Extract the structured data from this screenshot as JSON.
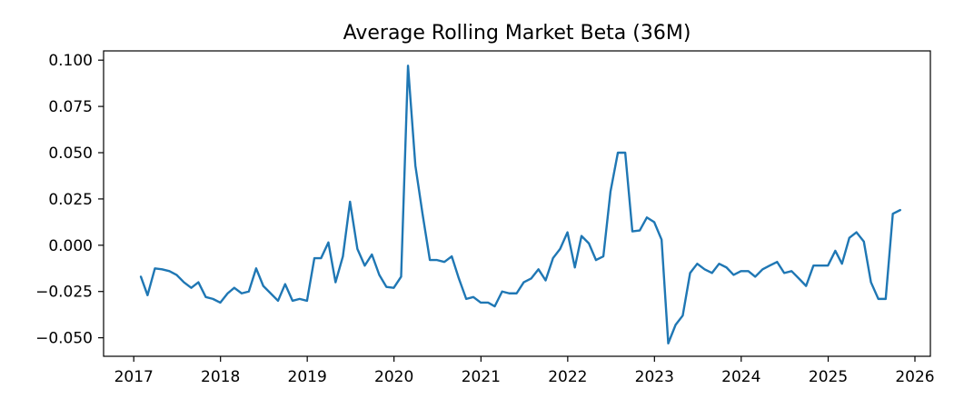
{
  "chart_data": {
    "type": "line",
    "title": "Average Rolling Market Beta (36M)",
    "xlabel": "",
    "ylabel": "",
    "xlim": [
      "2016-08-27",
      "2026-03-07"
    ],
    "ylim": [
      -0.06,
      0.105
    ],
    "x_ticks": [
      "2017",
      "2018",
      "2019",
      "2020",
      "2021",
      "2022",
      "2023",
      "2024",
      "2025",
      "2026"
    ],
    "y_ticks": [
      "0.100",
      "0.075",
      "0.050",
      "0.025",
      "0.000",
      "−0.025",
      "−0.050"
    ],
    "grid": false,
    "colors": {
      "line": "#1f77b4"
    },
    "series": [
      {
        "x": [
          "2017-01-31",
          "2017-02-28",
          "2017-03-31",
          "2017-04-30",
          "2017-05-31",
          "2017-06-30",
          "2017-07-31",
          "2017-08-31",
          "2017-09-30",
          "2017-10-31",
          "2017-11-30",
          "2017-12-31",
          "2018-01-31",
          "2018-02-28",
          "2018-03-31",
          "2018-04-30",
          "2018-05-31",
          "2018-06-30",
          "2018-07-31",
          "2018-08-31",
          "2018-09-30",
          "2018-10-31",
          "2018-11-30",
          "2018-12-31",
          "2019-01-31",
          "2019-02-28",
          "2019-03-31",
          "2019-04-30",
          "2019-05-31",
          "2019-06-30",
          "2019-07-31",
          "2019-08-31",
          "2019-09-30",
          "2019-10-31",
          "2019-11-30",
          "2019-12-31",
          "2020-01-31",
          "2020-02-29",
          "2020-03-31",
          "2020-04-30",
          "2020-05-31",
          "2020-06-30",
          "2020-07-31",
          "2020-08-31",
          "2020-09-30",
          "2020-10-31",
          "2020-11-30",
          "2020-12-31",
          "2021-01-31",
          "2021-02-28",
          "2021-03-31",
          "2021-04-30",
          "2021-05-31",
          "2021-06-30",
          "2021-07-31",
          "2021-08-31",
          "2021-09-30",
          "2021-10-31",
          "2021-11-30",
          "2021-12-31",
          "2022-01-31",
          "2022-02-28",
          "2022-03-31",
          "2022-04-30",
          "2022-05-31",
          "2022-06-30",
          "2022-07-31",
          "2022-08-31",
          "2022-09-30",
          "2022-10-31",
          "2022-11-30",
          "2022-12-31",
          "2023-01-31",
          "2023-02-28",
          "2023-03-31",
          "2023-04-30",
          "2023-05-31",
          "2023-06-30",
          "2023-07-31",
          "2023-08-31",
          "2023-09-30",
          "2023-10-31",
          "2023-11-30",
          "2023-12-31",
          "2024-01-31",
          "2024-02-29",
          "2024-03-31",
          "2024-04-30",
          "2024-05-31",
          "2024-06-30",
          "2024-07-31",
          "2024-08-31",
          "2024-09-30",
          "2024-10-31",
          "2024-11-30",
          "2024-12-31",
          "2025-01-31",
          "2025-02-28",
          "2025-03-31",
          "2025-04-30",
          "2025-05-31",
          "2025-06-30",
          "2025-07-31",
          "2025-08-31",
          "2025-09-30",
          "2025-10-31"
        ],
        "y": [
          -0.017,
          -0.027,
          -0.0125,
          -0.013,
          -0.014,
          -0.016,
          -0.02,
          -0.023,
          -0.02,
          -0.028,
          -0.029,
          -0.031,
          -0.026,
          -0.023,
          -0.026,
          -0.025,
          -0.0125,
          -0.022,
          -0.026,
          -0.03,
          -0.021,
          -0.03,
          -0.029,
          -0.03,
          -0.007,
          -0.007,
          0.0015,
          -0.02,
          -0.006,
          0.0235,
          -0.002,
          -0.011,
          -0.005,
          -0.016,
          -0.0225,
          -0.023,
          -0.017,
          0.097,
          0.043,
          0.017,
          -0.008,
          -0.008,
          -0.009,
          -0.006,
          -0.018,
          -0.029,
          -0.028,
          -0.031,
          -0.031,
          -0.033,
          -0.025,
          -0.026,
          -0.026,
          -0.02,
          -0.018,
          -0.013,
          -0.019,
          -0.007,
          -0.002,
          0.007,
          -0.012,
          0.005,
          0.001,
          -0.008,
          -0.006,
          0.029,
          0.05,
          0.05,
          0.0075,
          0.008,
          0.015,
          0.0125,
          0.003,
          -0.053,
          -0.043,
          -0.038,
          -0.015,
          -0.01,
          -0.013,
          -0.015,
          -0.01,
          -0.012,
          -0.016,
          -0.014,
          -0.014,
          -0.017,
          -0.013,
          -0.011,
          -0.009,
          -0.015,
          -0.014,
          -0.018,
          -0.022,
          -0.011,
          -0.011,
          -0.011,
          -0.003,
          -0.01,
          0.004,
          0.007,
          0.002,
          -0.02,
          -0.029,
          -0.029,
          0.017,
          0.019
        ]
      }
    ]
  }
}
